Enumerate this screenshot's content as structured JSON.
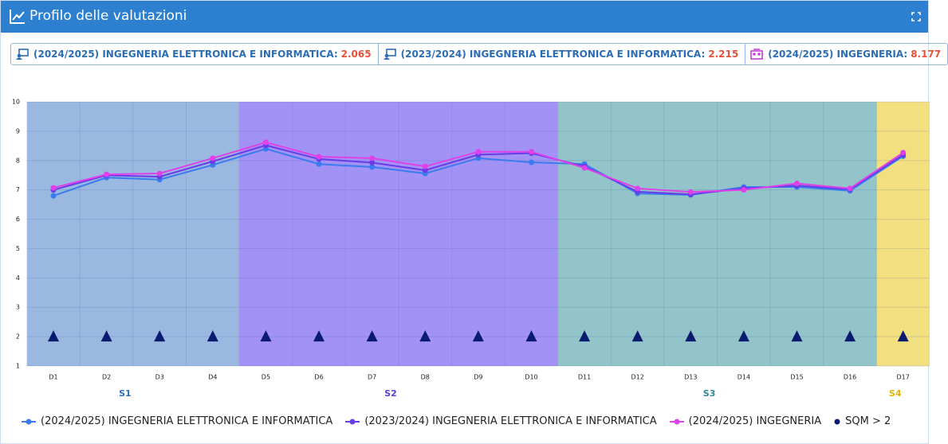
{
  "header": {
    "title": "Profilo delle valutazioni"
  },
  "badges": [
    {
      "label": "(2024/2025) INGEGNERIA ELETTRONICA E INFORMATICA:",
      "value": 2.065
    },
    {
      "label": "(2023/2024) INGEGNERIA ELETTRONICA E INFORMATICA:",
      "value": 2.215
    },
    {
      "label": "(2024/2025) INGEGNERIA:",
      "value": 8.177
    }
  ],
  "chart_data": {
    "type": "line",
    "groups": [
      {
        "name": "S1",
        "color": "#9ab8e0",
        "label_color": "#2a6fc0",
        "categories": [
          "D1",
          "D2",
          "D3",
          "D4"
        ]
      },
      {
        "name": "S2",
        "color": "#a292f5",
        "label_color": "#5b3be0",
        "categories": [
          "D5",
          "D6",
          "D7",
          "D8",
          "D9",
          "D10"
        ]
      },
      {
        "name": "S3",
        "color": "#93c4c9",
        "label_color": "#2a8a96",
        "categories": [
          "D11",
          "D12",
          "D13",
          "D14",
          "D15",
          "D16"
        ]
      },
      {
        "name": "S4",
        "color": "#f2df80",
        "label_color": "#e0b400",
        "categories": [
          "D17"
        ]
      }
    ],
    "series": [
      {
        "name": "(2024/2025) INGEGNERIA ELETTRONICA E INFORMATICA",
        "color": "#3a7bef",
        "values": [
          6.8,
          7.42,
          7.35,
          7.85,
          8.4,
          7.88,
          7.78,
          7.56,
          8.08,
          7.94,
          7.88,
          6.88,
          6.83,
          7.1,
          7.1,
          6.97,
          8.15
        ]
      },
      {
        "name": "(2023/2024) INGEGNERIA ELETTRONICA E INFORMATICA",
        "color": "#6a3be8",
        "values": [
          7.0,
          7.5,
          7.45,
          7.97,
          8.52,
          8.05,
          7.93,
          7.67,
          8.2,
          8.25,
          7.8,
          6.94,
          6.85,
          7.05,
          7.15,
          7.02,
          8.2
        ]
      },
      {
        "name": "(2024/2025) INGEGNERIA",
        "color": "#e040e8",
        "values": [
          7.07,
          7.53,
          7.56,
          8.08,
          8.62,
          8.13,
          8.08,
          7.8,
          8.3,
          8.3,
          7.75,
          7.05,
          6.93,
          7.0,
          7.22,
          7.05,
          8.27
        ]
      },
      {
        "name": "SQM > 2",
        "color": "#0a1a6e",
        "marker": "triangle",
        "values": [
          2,
          2,
          2,
          2,
          2,
          2,
          2,
          2,
          2,
          2,
          2,
          2,
          2,
          2,
          2,
          2,
          2
        ]
      }
    ],
    "ylim": [
      1,
      10
    ],
    "yticks": [
      1,
      2,
      3,
      4,
      5,
      6,
      7,
      8,
      9,
      10
    ],
    "grid": true
  }
}
